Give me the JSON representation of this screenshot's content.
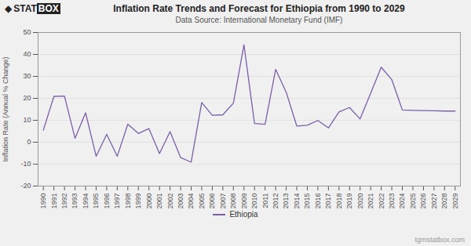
{
  "chart_data": {
    "type": "line",
    "title": "Inflation Rate Trends and Forecast for Ethiopia from 1990 to 2029",
    "subtitle": "Data Source: International Monetary Fund (IMF)",
    "ylabel": "Inflation Rate (Annual % Change)",
    "logo": [
      "◆",
      "STAT",
      "BOX"
    ],
    "watermark": "tgmstatbox.com",
    "x": [
      1990,
      1991,
      1992,
      1993,
      1994,
      1995,
      1996,
      1997,
      1998,
      1999,
      2000,
      2001,
      2002,
      2003,
      2004,
      2005,
      2006,
      2007,
      2008,
      2009,
      2010,
      2011,
      2012,
      2013,
      2014,
      2015,
      2016,
      2017,
      2018,
      2019,
      2020,
      2021,
      2022,
      2023,
      2024,
      2025,
      2026,
      2027,
      2028,
      2029
    ],
    "series": [
      {
        "name": "Ethiopia",
        "color": "#7B5EA7",
        "values": [
          5.5,
          20.9,
          21.0,
          1.8,
          13.4,
          -6.4,
          3.6,
          -6.4,
          8.2,
          4.0,
          6.2,
          -5.2,
          4.8,
          -7.0,
          -9.1,
          18.1,
          12.3,
          12.5,
          17.8,
          44.4,
          8.5,
          8.2,
          33.2,
          22.8,
          7.4,
          7.7,
          9.9,
          6.5,
          13.8,
          15.8,
          10.6,
          22.3,
          34.2,
          28.5,
          14.7,
          14.5,
          14.4,
          14.3,
          14.2,
          14.2
        ]
      }
    ],
    "xlim": [
      1989.5,
      2029.5
    ],
    "xticks": [
      1990,
      1991,
      1992,
      1993,
      1994,
      1995,
      1996,
      1997,
      1998,
      1999,
      2000,
      2001,
      2002,
      2003,
      2004,
      2005,
      2006,
      2007,
      2008,
      2009,
      2010,
      2011,
      2012,
      2013,
      2014,
      2015,
      2016,
      2017,
      2018,
      2019,
      2020,
      2021,
      2022,
      2023,
      2024,
      2025,
      2026,
      2027,
      2028,
      2029
    ],
    "ylim": [
      -20,
      50
    ],
    "yticks": [
      -20,
      -10,
      0,
      10,
      20,
      30,
      40,
      50
    ],
    "grid": true,
    "legend": "bottom"
  }
}
